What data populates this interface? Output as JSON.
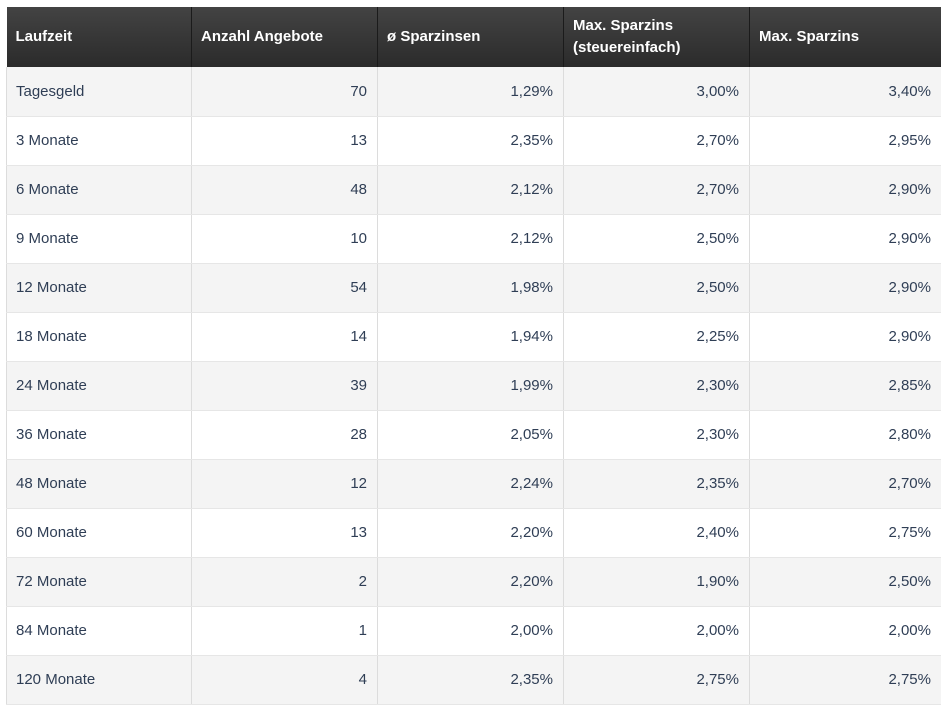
{
  "table": {
    "headers": {
      "term": "Laufzeit",
      "offers": "Anzahl Angebote",
      "avg_rate": "ø Sparzinsen",
      "max_rate_tax_simple_line1": "Max. Sparzins",
      "max_rate_tax_simple_line2": "(steuereinfach)",
      "max_rate": "Max. Sparzins"
    },
    "rows": [
      {
        "term": "Tagesgeld",
        "offers": "70",
        "avg_rate": "1,29%",
        "max_rate_tax_simple": "3,00%",
        "max_rate": "3,40%"
      },
      {
        "term": "3 Monate",
        "offers": "13",
        "avg_rate": "2,35%",
        "max_rate_tax_simple": "2,70%",
        "max_rate": "2,95%"
      },
      {
        "term": "6 Monate",
        "offers": "48",
        "avg_rate": "2,12%",
        "max_rate_tax_simple": "2,70%",
        "max_rate": "2,90%"
      },
      {
        "term": "9 Monate",
        "offers": "10",
        "avg_rate": "2,12%",
        "max_rate_tax_simple": "2,50%",
        "max_rate": "2,90%"
      },
      {
        "term": "12 Monate",
        "offers": "54",
        "avg_rate": "1,98%",
        "max_rate_tax_simple": "2,50%",
        "max_rate": "2,90%"
      },
      {
        "term": "18 Monate",
        "offers": "14",
        "avg_rate": "1,94%",
        "max_rate_tax_simple": "2,25%",
        "max_rate": "2,90%"
      },
      {
        "term": "24 Monate",
        "offers": "39",
        "avg_rate": "1,99%",
        "max_rate_tax_simple": "2,30%",
        "max_rate": "2,85%"
      },
      {
        "term": "36 Monate",
        "offers": "28",
        "avg_rate": "2,05%",
        "max_rate_tax_simple": "2,30%",
        "max_rate": "2,80%"
      },
      {
        "term": "48 Monate",
        "offers": "12",
        "avg_rate": "2,24%",
        "max_rate_tax_simple": "2,35%",
        "max_rate": "2,70%"
      },
      {
        "term": "60 Monate",
        "offers": "13",
        "avg_rate": "2,20%",
        "max_rate_tax_simple": "2,40%",
        "max_rate": "2,75%"
      },
      {
        "term": "72 Monate",
        "offers": "2",
        "avg_rate": "2,20%",
        "max_rate_tax_simple": "1,90%",
        "max_rate": "2,50%"
      },
      {
        "term": "84 Monate",
        "offers": "1",
        "avg_rate": "2,00%",
        "max_rate_tax_simple": "2,00%",
        "max_rate": "2,00%"
      },
      {
        "term": "120 Monate",
        "offers": "4",
        "avg_rate": "2,35%",
        "max_rate_tax_simple": "2,75%",
        "max_rate": "2,75%"
      }
    ]
  }
}
